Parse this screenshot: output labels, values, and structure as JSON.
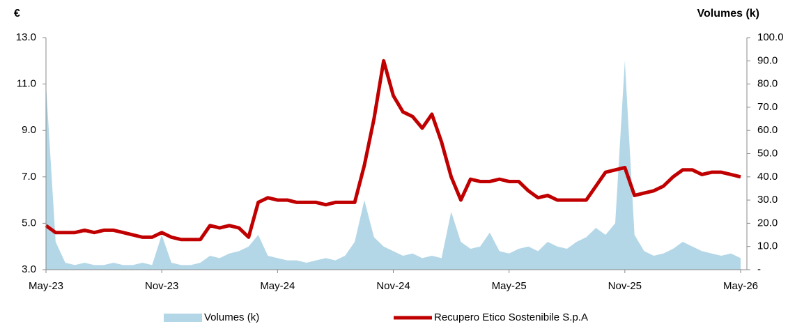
{
  "chart_data": {
    "type": "line",
    "y_axis_title": "€",
    "y2_axis_title": "Volumes (k)",
    "categories": [
      "May-23",
      null,
      null,
      null,
      null,
      null,
      null,
      null,
      null,
      null,
      null,
      null,
      "Nov-23",
      null,
      null,
      null,
      null,
      null,
      null,
      null,
      null,
      null,
      null,
      null,
      "May-24",
      null,
      null,
      null,
      null,
      null,
      null,
      null,
      null,
      null,
      null,
      null,
      "Nov-24",
      null,
      null,
      null,
      null,
      null,
      null,
      null,
      null,
      null,
      null,
      null,
      "May-25",
      null,
      null,
      null,
      null,
      null,
      null,
      null,
      null,
      null,
      null,
      null,
      "Nov-25",
      null,
      null,
      null,
      null,
      null,
      null,
      null,
      null,
      null,
      null,
      null,
      "May-26"
    ],
    "series": [
      {
        "name": "Volumes (k)",
        "type": "area",
        "axis": "y2",
        "color": "#b4d7e8",
        "values": [
          80,
          12,
          3,
          2,
          3,
          2,
          2,
          3,
          2,
          2,
          3,
          2,
          15,
          3,
          2,
          2,
          3,
          6,
          5,
          7,
          8,
          10,
          15,
          6,
          5,
          4,
          4,
          3,
          4,
          5,
          4,
          6,
          12,
          30,
          14,
          10,
          8,
          6,
          7,
          5,
          6,
          5,
          25,
          12,
          9,
          10,
          16,
          8,
          7,
          9,
          10,
          8,
          12,
          10,
          9,
          12,
          14,
          18,
          15,
          20,
          90,
          15,
          8,
          6,
          7,
          9,
          12,
          10,
          8,
          7,
          6,
          7,
          5
        ]
      },
      {
        "name": "Recupero Etico Sostenibile S.p.A",
        "color": "#c00000",
        "values": [
          4.9,
          4.6,
          4.6,
          4.6,
          4.7,
          4.6,
          4.7,
          4.7,
          4.6,
          4.5,
          4.4,
          4.4,
          4.6,
          4.4,
          4.3,
          4.3,
          4.3,
          4.9,
          4.8,
          4.9,
          4.8,
          4.4,
          5.9,
          6.1,
          6.0,
          6.0,
          5.9,
          5.9,
          5.9,
          5.8,
          5.9,
          5.9,
          5.9,
          7.5,
          9.5,
          12.0,
          10.5,
          9.8,
          9.6,
          9.1,
          9.7,
          8.5,
          7.0,
          6.0,
          6.9,
          6.8,
          6.8,
          6.9,
          6.8,
          6.8,
          6.4,
          6.1,
          6.2,
          6.0,
          6.0,
          6.0,
          6.0,
          6.6,
          7.2,
          7.3,
          7.4,
          6.2,
          6.3,
          6.4,
          6.6,
          7.0,
          7.3,
          7.3,
          7.1,
          7.2,
          7.2,
          7.1,
          7.0
        ]
      }
    ],
    "ylim": [
      3,
      13
    ],
    "yticks": [
      {
        "value": 3,
        "label": "3.0"
      },
      {
        "value": 5,
        "label": "5.0"
      },
      {
        "value": 7,
        "label": "7.0"
      },
      {
        "value": 9,
        "label": "9.0"
      },
      {
        "value": 11,
        "label": "11.0"
      },
      {
        "value": 13,
        "label": "13.0"
      }
    ],
    "y2lim": [
      0,
      100
    ],
    "y2ticks": [
      {
        "value": 0,
        "label": "-"
      },
      {
        "value": 10,
        "label": "10.0"
      },
      {
        "value": 20,
        "label": "20.0"
      },
      {
        "value": 30,
        "label": "30.0"
      },
      {
        "value": 40,
        "label": "40.0"
      },
      {
        "value": 50,
        "label": "50.0"
      },
      {
        "value": 60,
        "label": "60.0"
      },
      {
        "value": 70,
        "label": "70.0"
      },
      {
        "value": 80,
        "label": "80.0"
      },
      {
        "value": 90,
        "label": "90.0"
      },
      {
        "value": 100,
        "label": "100.0"
      }
    ],
    "grid": false
  }
}
